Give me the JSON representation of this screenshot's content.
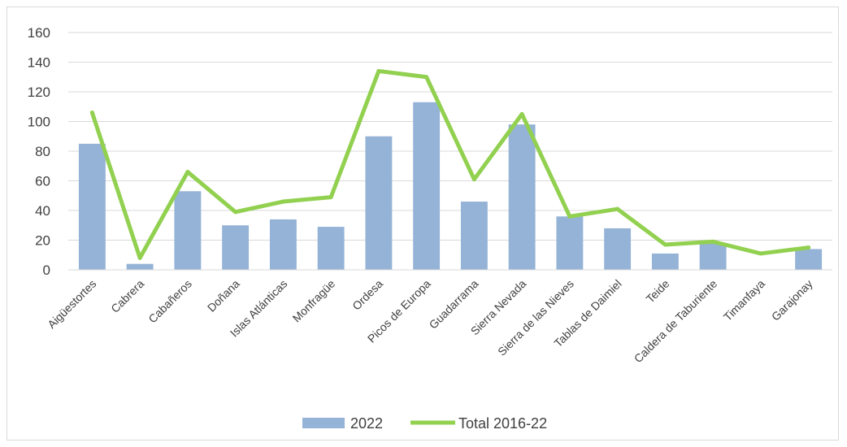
{
  "chart_data": {
    "type": "bar",
    "title": "",
    "xlabel": "",
    "ylabel": "",
    "ylim": [
      0,
      160
    ],
    "yticks": [
      0,
      20,
      40,
      60,
      80,
      100,
      120,
      140,
      160
    ],
    "grid": true,
    "legend_position": "bottom",
    "categories": [
      "Aigüestortes",
      "Cabrera",
      "Cabañeros",
      "Doñana",
      "Islas Atlánticas",
      "Monfragüe",
      "Ordesa",
      "Picos de Europa",
      "Guadarrama",
      "Sierra Nevada",
      "Sierra de las Nieves",
      "Tablas de Daimiel",
      "Teide",
      "Caldera de Taburiente",
      "Timanfaya",
      "Garajonay"
    ],
    "series": [
      {
        "name": "2022",
        "type": "bar",
        "color": "#95b3d7",
        "values": [
          85,
          4,
          53,
          30,
          34,
          29,
          90,
          113,
          46,
          98,
          36,
          28,
          11,
          18,
          0,
          14
        ]
      },
      {
        "name": "Total 2016-22",
        "type": "line",
        "color": "#92d050",
        "values": [
          106,
          8,
          66,
          39,
          46,
          49,
          134,
          130,
          61,
          105,
          36,
          41,
          17,
          19,
          11,
          15
        ]
      }
    ]
  }
}
